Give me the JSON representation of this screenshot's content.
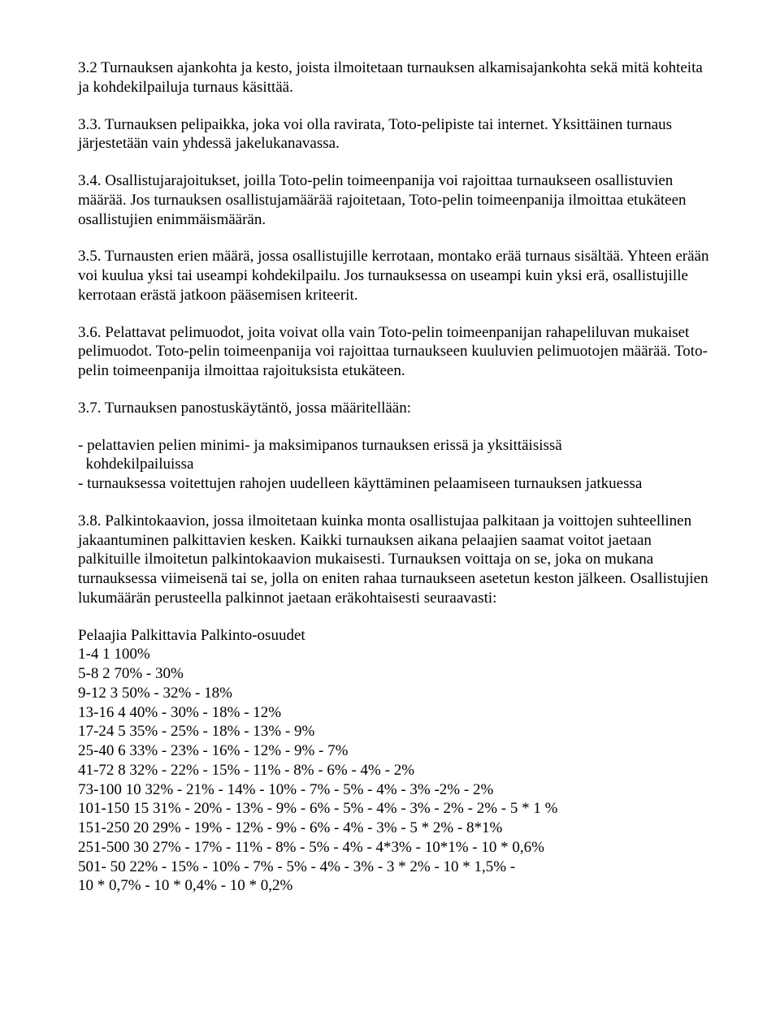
{
  "paragraphs": {
    "p32": "3.2 Turnauksen ajankohta ja kesto, joista ilmoitetaan turnauksen alkamisajankohta sekä mitä kohteita ja kohdekilpailuja turnaus käsittää.",
    "p33": "3.3. Turnauksen pelipaikka, joka voi olla ravirata, Toto-pelipiste tai internet. Yksittäinen turnaus järjestetään vain yhdessä jakelukanavassa.",
    "p34": "3.4. Osallistujarajoitukset, joilla Toto-pelin toimeenpanija voi rajoittaa turnaukseen osallistuvien määrää. Jos turnauksen osallistujamäärää rajoitetaan, Toto-pelin toimeenpanija ilmoittaa etukäteen osallistujien enimmäismäärän.",
    "p35": "3.5. Turnausten erien määrä, jossa osallistujille kerrotaan, montako erää turnaus sisältää. Yhteen erään voi kuulua yksi tai useampi kohdekilpailu. Jos turnauksessa on useampi kuin yksi erä, osallistujille kerrotaan erästä jatkoon pääsemisen kriteerit.",
    "p36": "3.6. Pelattavat pelimuodot, joita voivat olla vain Toto-pelin toimeenpanijan rahapeliluvan mukaiset pelimuodot. Toto-pelin toimeenpanija voi rajoittaa turnaukseen kuuluvien pelimuotojen määrää. Toto-pelin toimeenpanija ilmoittaa rajoituksista etukäteen.",
    "p37_intro": "3.7. Turnauksen panostuskäytäntö, jossa määritellään:",
    "p37_bullet1": "- pelattavien pelien minimi- ja maksimipanos turnauksen erissä ja yksittäisissä\n  kohdekilpailuissa",
    "p37_bullet2": "- turnauksessa voitettujen rahojen uudelleen käyttäminen pelaamiseen turnauksen jatkuessa",
    "p38": "3.8. Palkintokaavion, jossa ilmoitetaan kuinka monta osallistujaa palkitaan ja voittojen suhteellinen jakaantuminen palkittavien kesken. Kaikki turnauksen aikana pelaajien saamat voitot jaetaan palkituille ilmoitetun palkintokaavion mukaisesti. Turnauksen voittaja on se, joka on mukana turnauksessa viimeisenä tai se, jolla on eniten rahaa turnaukseen asetetun keston jälkeen. Osallistujien lukumäärän perusteella palkinnot jaetaan eräkohtaisesti seuraavasti:"
  },
  "payout_table": {
    "heading": "Pelaajia Palkittavia Palkinto-osuudet",
    "rows": [
      "1-4 1 100%",
      "5-8 2 70% - 30%",
      "9-12 3 50% - 32% - 18%",
      "13-16 4 40% - 30% - 18% - 12%",
      "17-24 5 35% - 25% - 18% - 13% - 9%",
      "25-40 6 33% - 23% - 16% - 12% - 9% - 7%",
      "41-72 8 32% - 22% - 15% - 11% - 8% - 6% - 4% - 2%",
      "73-100 10 32% - 21% - 14% - 10% - 7% - 5% - 4% - 3% -2% - 2%",
      "101-150 15 31% - 20% - 13% - 9% - 6% - 5% - 4% - 3% - 2% - 2% - 5 * 1 %",
      "151-250 20 29% - 19% - 12% - 9% - 6% - 4% - 3% - 5 * 2% - 8*1%",
      "251-500 30 27% - 17% - 11% - 8% - 5% - 4% - 4*3% - 10*1% - 10 * 0,6%",
      "501- 50 22% - 15% - 10% - 7% - 5% - 4% - 3% - 3 * 2% - 10 * 1,5% -",
      "10 * 0,7% - 10 * 0,4% - 10 * 0,2%"
    ]
  }
}
